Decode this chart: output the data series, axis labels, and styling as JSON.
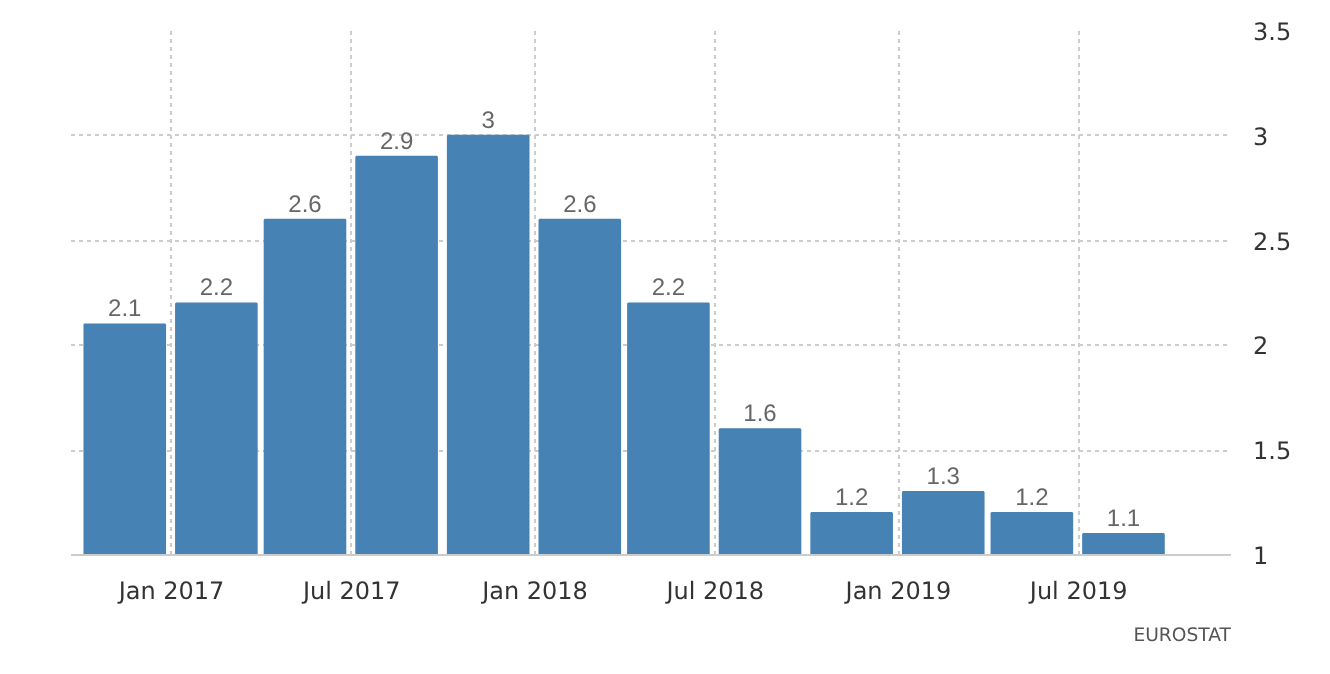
{
  "chart_data": {
    "type": "bar",
    "x": [
      "2016-11-15",
      "2017-02-15",
      "2017-05-15",
      "2017-08-15",
      "2017-11-15",
      "2018-02-15",
      "2018-05-15",
      "2018-08-15",
      "2018-11-15",
      "2019-02-15",
      "2019-05-15",
      "2019-08-15"
    ],
    "values": [
      2.1,
      2.2,
      2.6,
      2.9,
      3,
      2.6,
      2.2,
      1.6,
      1.2,
      1.3,
      1.2,
      1.1
    ],
    "color": "#4682b4",
    "data_labels": true,
    "xlim": [
      "2016-09-22",
      "2019-12-01"
    ],
    "xticks": [
      {
        "value": "2017-01",
        "label": "Jan 2017"
      },
      {
        "value": "2017-07",
        "label": "Jul 2017"
      },
      {
        "value": "2018-01",
        "label": "Jan 2018"
      },
      {
        "value": "2018-07",
        "label": "Jul 2018"
      },
      {
        "value": "2019-01",
        "label": "Jan 2019"
      },
      {
        "value": "2019-07",
        "label": "Jul 2019"
      }
    ],
    "ylim": [
      1,
      3.5
    ],
    "yticks": [
      1,
      1.5,
      2,
      2.5,
      3,
      3.5
    ],
    "grid": true,
    "annotations": [
      "EUROSTAT"
    ]
  }
}
